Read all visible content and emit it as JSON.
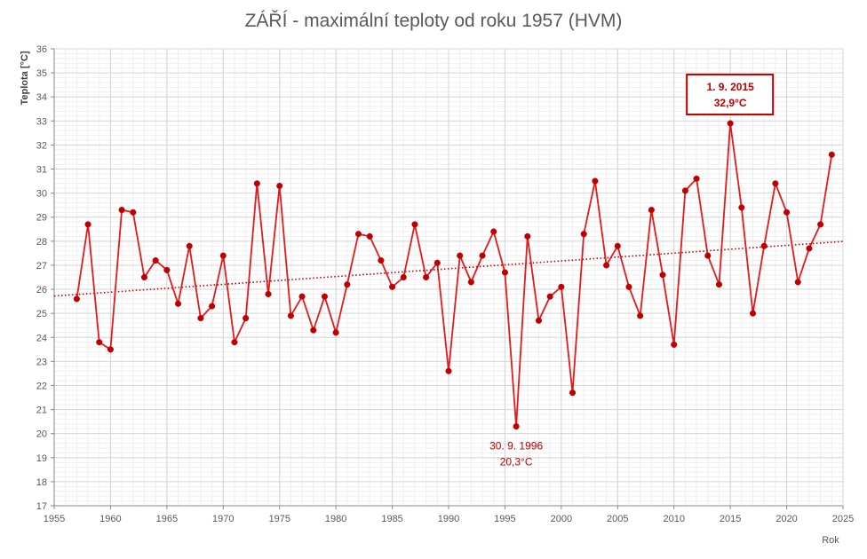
{
  "chart_data": {
    "type": "line",
    "title": "ZÁŘÍ - maximální teploty od roku 1957 (HVM)",
    "xlabel": "Rok",
    "ylabel": "Teplota [°C]",
    "xlim": [
      1955,
      2025
    ],
    "ylim": [
      17,
      36
    ],
    "xticks": [
      1955,
      1960,
      1965,
      1970,
      1975,
      1980,
      1985,
      1990,
      1995,
      2000,
      2005,
      2010,
      2015,
      2020,
      2025
    ],
    "yticks": [
      17,
      18,
      19,
      20,
      21,
      22,
      23,
      24,
      25,
      26,
      27,
      28,
      29,
      30,
      31,
      32,
      33,
      34,
      35,
      36
    ],
    "grid": true,
    "line_color": "#e31a1c",
    "marker_color": "#c00000",
    "trend_color": "#c00000",
    "series": [
      {
        "x": [
          1957,
          1958,
          1959,
          1960,
          1961,
          1962,
          1963,
          1964,
          1965,
          1966,
          1967,
          1968,
          1969,
          1970,
          1971,
          1972,
          1973,
          1974,
          1975,
          1976,
          1977,
          1978,
          1979,
          1980,
          1981,
          1982,
          1983,
          1984,
          1985,
          1986,
          1987,
          1988,
          1989,
          1990,
          1991,
          1992,
          1993,
          1994,
          1995,
          1996,
          1997,
          1998,
          1999,
          2000,
          2001,
          2002,
          2003,
          2004,
          2005,
          2006,
          2007,
          2008,
          2009,
          2010,
          2011,
          2012,
          2013,
          2014,
          2015,
          2016,
          2017,
          2018,
          2019,
          2020,
          2021,
          2022,
          2023,
          2024
        ],
        "values": [
          25.6,
          28.7,
          23.8,
          23.5,
          29.3,
          29.2,
          26.5,
          27.2,
          26.8,
          25.4,
          27.8,
          24.8,
          25.3,
          27.4,
          23.8,
          24.8,
          30.4,
          25.8,
          30.3,
          24.9,
          25.7,
          24.3,
          25.7,
          24.2,
          26.2,
          28.3,
          28.2,
          27.2,
          26.1,
          26.5,
          28.7,
          26.5,
          27.1,
          22.6,
          27.4,
          26.3,
          27.4,
          28.4,
          26.7,
          20.3,
          28.2,
          24.7,
          25.7,
          26.1,
          21.7,
          28.3,
          30.5,
          27.0,
          27.8,
          26.1,
          24.9,
          29.3,
          26.6,
          23.7,
          30.1,
          30.6,
          27.4,
          26.2,
          32.9,
          29.4,
          25.0,
          27.8,
          30.4,
          29.2,
          26.3,
          27.7,
          28.7,
          31.6
        ]
      }
    ],
    "trendline": {
      "x": [
        1955,
        2025
      ],
      "values": [
        25.72,
        27.99
      ]
    },
    "annotations": [
      {
        "line1": "1. 9. 2015",
        "line2": "32,9°C",
        "x": 2015,
        "y": 32.9,
        "boxed": true
      },
      {
        "line1": "30. 9. 1996",
        "line2": "20,3°C",
        "x": 1996,
        "y": 20.3,
        "boxed": false
      }
    ]
  }
}
